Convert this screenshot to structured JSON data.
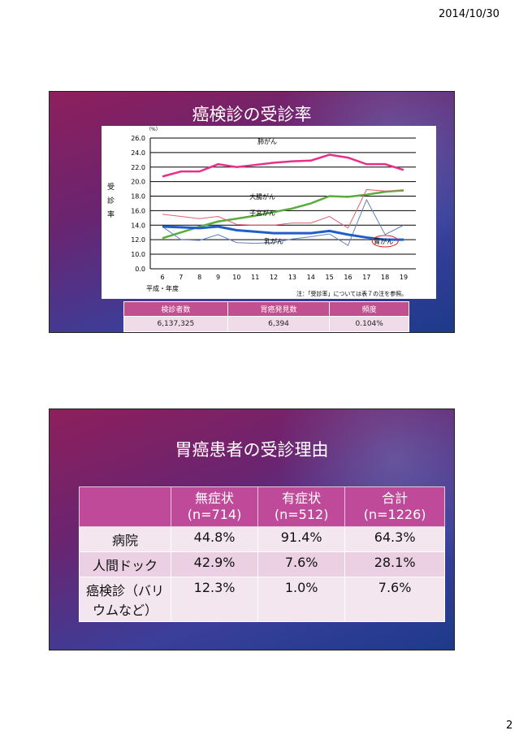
{
  "header": {
    "date": "2014/10/30"
  },
  "page_number": "2",
  "slide1": {
    "title": "癌検診の受診率",
    "table": {
      "header": [
        "検診者数",
        "胃癌発見数",
        "頻度"
      ],
      "rows": [
        [
          "6,137,325",
          "6,394",
          "0.104%"
        ]
      ]
    }
  },
  "chart_data": {
    "type": "line",
    "y_unit": "（%）",
    "y_label": "受診率",
    "x_label": "平成・年度",
    "note": "注：「受診率」については表７の注を参照。",
    "categories": [
      "6",
      "7",
      "8",
      "9",
      "10",
      "11",
      "12",
      "13",
      "14",
      "15",
      "16",
      "17",
      "18",
      "19"
    ],
    "ylim": [
      0,
      26
    ],
    "yticks": [
      {
        "value": 0,
        "label": "0.0"
      },
      {
        "value": 10,
        "label": "10.0"
      },
      {
        "value": 12,
        "label": "12.0"
      },
      {
        "value": 14,
        "label": "14.0"
      },
      {
        "value": 16,
        "label": "16.0"
      },
      {
        "value": 18,
        "label": "18.0"
      },
      {
        "value": 20,
        "label": "20.0"
      },
      {
        "value": 22,
        "label": "22.0"
      },
      {
        "value": 24,
        "label": "24.0"
      },
      {
        "value": 26,
        "label": "26.0"
      }
    ],
    "grid": true,
    "series": [
      {
        "name": "肺がん",
        "color": "#e8308a",
        "values": [
          20.7,
          21.4,
          21.4,
          22.4,
          22.0,
          22.3,
          22.6,
          22.8,
          22.9,
          23.7,
          23.3,
          22.4,
          22.4,
          21.6
        ]
      },
      {
        "name": "大腸がん",
        "color": "#5aac3c",
        "values": [
          12.2,
          13.0,
          13.8,
          14.5,
          14.9,
          15.3,
          15.8,
          16.3,
          17.0,
          18.0,
          17.9,
          18.2,
          18.6,
          18.8
        ]
      },
      {
        "name": "子宮がん",
        "color": "#e06070",
        "values": [
          15.5,
          15.2,
          14.9,
          15.2,
          14.1,
          14.0,
          14.0,
          14.3,
          14.3,
          15.2,
          13.6,
          18.9,
          18.7,
          18.7
        ]
      },
      {
        "name": "乳がん",
        "color": "#6080c0",
        "values": [
          13.8,
          12.0,
          11.9,
          12.7,
          11.6,
          11.5,
          11.6,
          12.1,
          12.4,
          12.8,
          11.2,
          17.5,
          12.7,
          14.0
        ]
      },
      {
        "name": "胃がん",
        "color": "#1f5fc8",
        "values": [
          13.8,
          13.7,
          13.6,
          13.8,
          13.3,
          13.1,
          12.9,
          12.9,
          12.9,
          13.2,
          12.7,
          12.3,
          12.0,
          12.0
        ]
      }
    ]
  },
  "slide2": {
    "title": "胃癌患者の受診理由",
    "table": {
      "header": [
        "",
        "無症状\n(n=714)",
        "有症状\n(n=512)",
        "合計\n(n=1226)"
      ],
      "rows": [
        [
          "病院",
          "44.8%",
          "91.4%",
          "64.3%"
        ],
        [
          "人間ドック",
          "42.9%",
          "7.6%",
          "28.1%"
        ],
        [
          "癌検診（バリウムなど）",
          "12.3%",
          "1.0%",
          "7.6%"
        ]
      ]
    }
  }
}
